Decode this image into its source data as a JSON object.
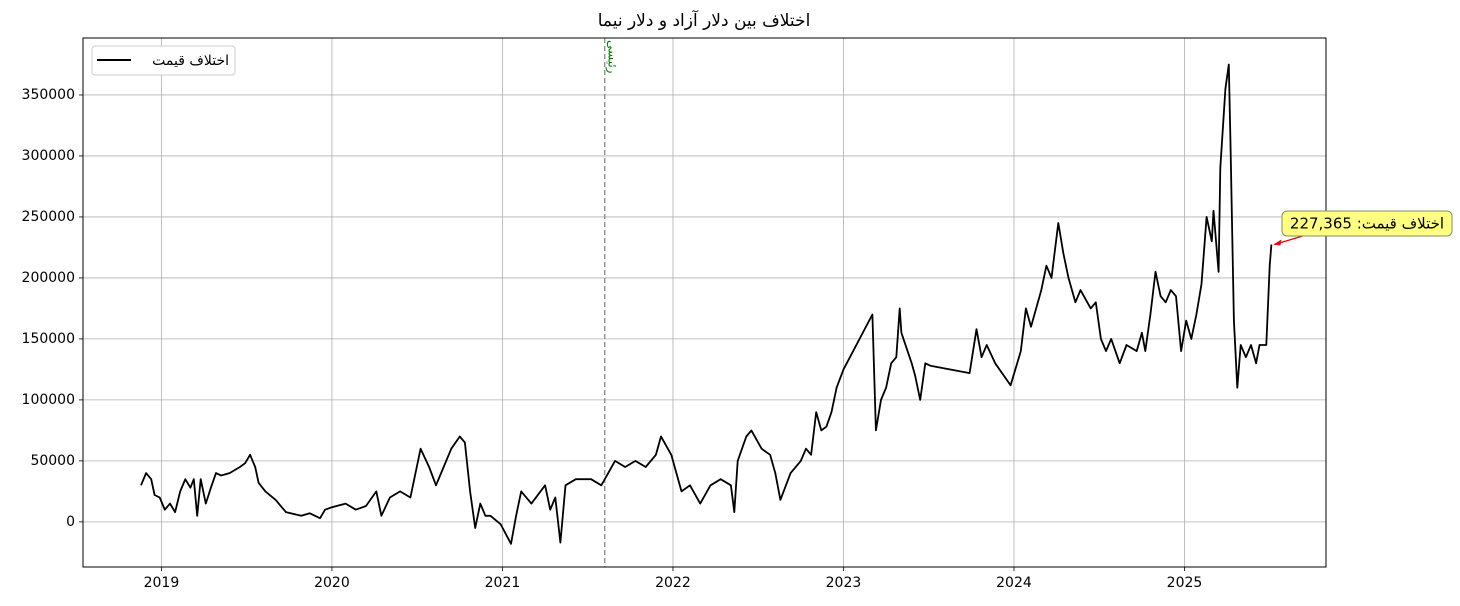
{
  "chart_data": {
    "type": "line",
    "title": "اختلاف بین دلار آزاد و دلار نیما",
    "x": [
      2018.88,
      2018.91,
      2018.94,
      2018.96,
      2018.99,
      2019.02,
      2019.05,
      2019.08,
      2019.11,
      2019.14,
      2019.17,
      2019.19,
      2019.21,
      2019.23,
      2019.26,
      2019.29,
      2019.32,
      2019.35,
      2019.4,
      2019.46,
      2019.49,
      2019.52,
      2019.55,
      2019.57,
      2019.61,
      2019.67,
      2019.73,
      2019.82,
      2019.87,
      2019.93,
      2019.96,
      2020.0,
      2020.08,
      2020.14,
      2020.2,
      2020.26,
      2020.29,
      2020.34,
      2020.4,
      2020.46,
      2020.52,
      2020.57,
      2020.61,
      2020.64,
      2020.7,
      2020.75,
      2020.78,
      2020.81,
      2020.84,
      2020.87,
      2020.9,
      2020.93,
      2020.99,
      2021.05,
      2021.08,
      2021.11,
      2021.17,
      2021.25,
      2021.28,
      2021.31,
      2021.34,
      2021.37,
      2021.43,
      2021.52,
      2021.58,
      2021.6,
      2021.66,
      2021.72,
      2021.78,
      2021.84,
      2021.9,
      2021.93,
      2021.99,
      2022.02,
      2022.05,
      2022.1,
      2022.16,
      2022.22,
      2022.28,
      2022.34,
      2022.36,
      2022.38,
      2022.43,
      2022.46,
      2022.52,
      2022.57,
      2022.6,
      2022.63,
      2022.69,
      2022.75,
      2022.78,
      2022.81,
      2022.84,
      2022.87,
      2022.9,
      2022.93,
      2022.96,
      2023.0,
      2023.17,
      2023.19,
      2023.22,
      2023.25,
      2023.28,
      2023.31,
      2023.33,
      2023.34,
      2023.4,
      2023.42,
      2023.45,
      2023.48,
      2023.51,
      2023.74,
      2023.78,
      2023.81,
      2023.84,
      2023.89,
      2023.95,
      2023.98,
      2024.04,
      2024.07,
      2024.1,
      2024.16,
      2024.19,
      2024.22,
      2024.26,
      2024.29,
      2024.32,
      2024.36,
      2024.39,
      2024.45,
      2024.48,
      2024.51,
      2024.54,
      2024.57,
      2024.62,
      2024.66,
      2024.72,
      2024.75,
      2024.77,
      2024.8,
      2024.83,
      2024.86,
      2024.89,
      2024.92,
      2024.95,
      2024.98,
      2025.01,
      2025.04,
      2025.07,
      2025.1,
      2025.13,
      2025.16,
      2025.17,
      2025.2,
      2025.21,
      2025.24,
      2025.26,
      2025.27,
      2025.29,
      2025.31,
      2025.33,
      2025.36,
      2025.39,
      2025.42,
      2025.44,
      2025.48,
      2025.5,
      2025.51
    ],
    "series": [
      {
        "name": "اختلاف قیمت",
        "color": "#000000",
        "values": [
          30000,
          40000,
          35000,
          22000,
          20000,
          10000,
          15000,
          8000,
          25000,
          35000,
          28000,
          35000,
          5000,
          35000,
          15000,
          28000,
          40000,
          38000,
          40000,
          45000,
          48000,
          55000,
          45000,
          32000,
          25000,
          18000,
          8000,
          5000,
          7000,
          3000,
          10000,
          12000,
          15000,
          10000,
          13000,
          25000,
          5000,
          20000,
          25000,
          20000,
          60000,
          45000,
          30000,
          40000,
          60000,
          70000,
          65000,
          25000,
          -5000,
          15000,
          5000,
          5000,
          -2000,
          -18000,
          5000,
          25000,
          15000,
          30000,
          10000,
          20000,
          -17000,
          30000,
          35000,
          35000,
          30000,
          35000,
          50000,
          45000,
          50000,
          45000,
          55000,
          70000,
          55000,
          40000,
          25000,
          30000,
          15000,
          30000,
          35000,
          30000,
          8000,
          50000,
          70000,
          75000,
          60000,
          55000,
          40000,
          18000,
          40000,
          50000,
          60000,
          55000,
          90000,
          75000,
          78000,
          90000,
          110000,
          125000,
          170000,
          75000,
          100000,
          110000,
          130000,
          135000,
          175000,
          155000,
          130000,
          120000,
          100000,
          130000,
          128000,
          122000,
          158000,
          135000,
          145000,
          130000,
          118000,
          112000,
          140000,
          175000,
          160000,
          190000,
          210000,
          200000,
          245000,
          220000,
          200000,
          180000,
          190000,
          175000,
          180000,
          150000,
          140000,
          150000,
          130000,
          145000,
          140000,
          155000,
          140000,
          170000,
          205000,
          185000,
          180000,
          190000,
          185000,
          140000,
          165000,
          150000,
          170000,
          195000,
          250000,
          230000,
          255000,
          205000,
          290000,
          355000,
          375000,
          310000,
          165000,
          110000,
          145000,
          135000,
          145000,
          130000,
          145000,
          145000,
          210000,
          227365
        ]
      }
    ],
    "xlim": [
      2018.54,
      2025.83
    ],
    "ylim": [
      -37000,
      396700
    ],
    "xticks": [
      2019,
      2020,
      2021,
      2022,
      2023,
      2024,
      2025
    ],
    "yticks": [
      0,
      50000,
      100000,
      150000,
      200000,
      250000,
      300000,
      350000
    ],
    "grid": true,
    "legend": "upper left",
    "events": [
      {
        "x": 2021.6,
        "label": "رئیسی",
        "color": "#008000"
      }
    ],
    "annotation": {
      "text": "اختلاف قیمت: 227,365",
      "x": 2025.51,
      "y": 227365,
      "color": "#ff0000"
    }
  }
}
